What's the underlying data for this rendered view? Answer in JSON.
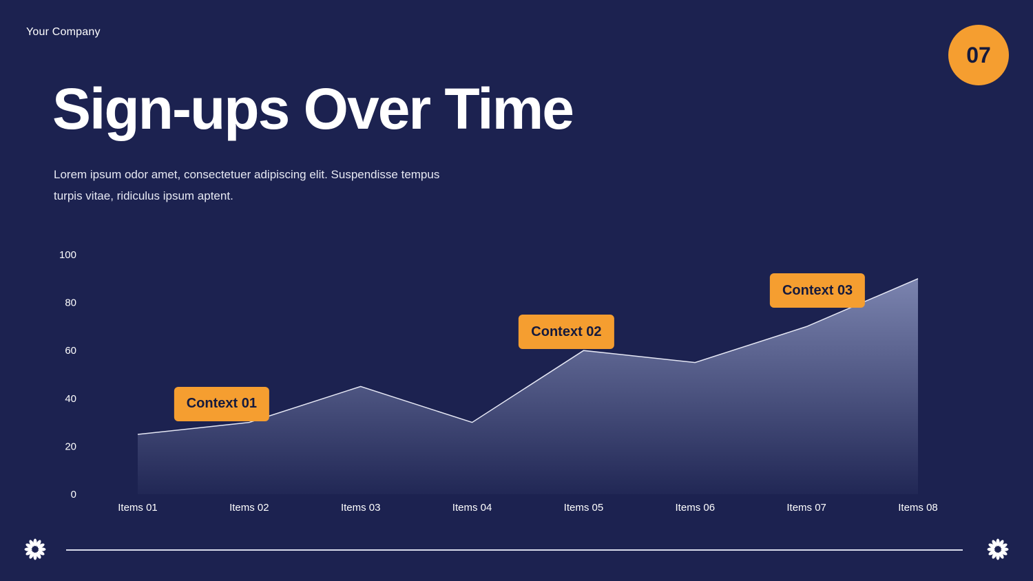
{
  "header": {
    "company": "Your Company",
    "page_number": "07"
  },
  "title": "Sign-ups Over Time",
  "subtitle": "Lorem ipsum odor amet, consectetuer adipiscing elit. Suspendisse tempus turpis vitae, ridiculus ipsum aptent.",
  "colors": {
    "background": "#1c2250",
    "accent": "#f59e30",
    "area_top": "#8089b4",
    "line": "#e6e8f5"
  },
  "chart_data": {
    "type": "area",
    "categories": [
      "Items 01",
      "Items 02",
      "Items 03",
      "Items 04",
      "Items 05",
      "Items 06",
      "Items 07",
      "Items 08"
    ],
    "series": [
      {
        "values": [
          25,
          30,
          45,
          30,
          60,
          55,
          70,
          90
        ]
      }
    ],
    "ylim": [
      0,
      100
    ],
    "yticks": [
      "0",
      "20",
      "40",
      "60",
      "80",
      "100"
    ],
    "grid": false,
    "annotations": [
      {
        "label": "Context 01",
        "category_index": 1
      },
      {
        "label": "Context 02",
        "category_index": 4
      },
      {
        "label": "Context 03",
        "category_index": 6
      }
    ]
  },
  "footer": {
    "left_icon": "flower-icon",
    "right_icon": "flower-icon"
  }
}
